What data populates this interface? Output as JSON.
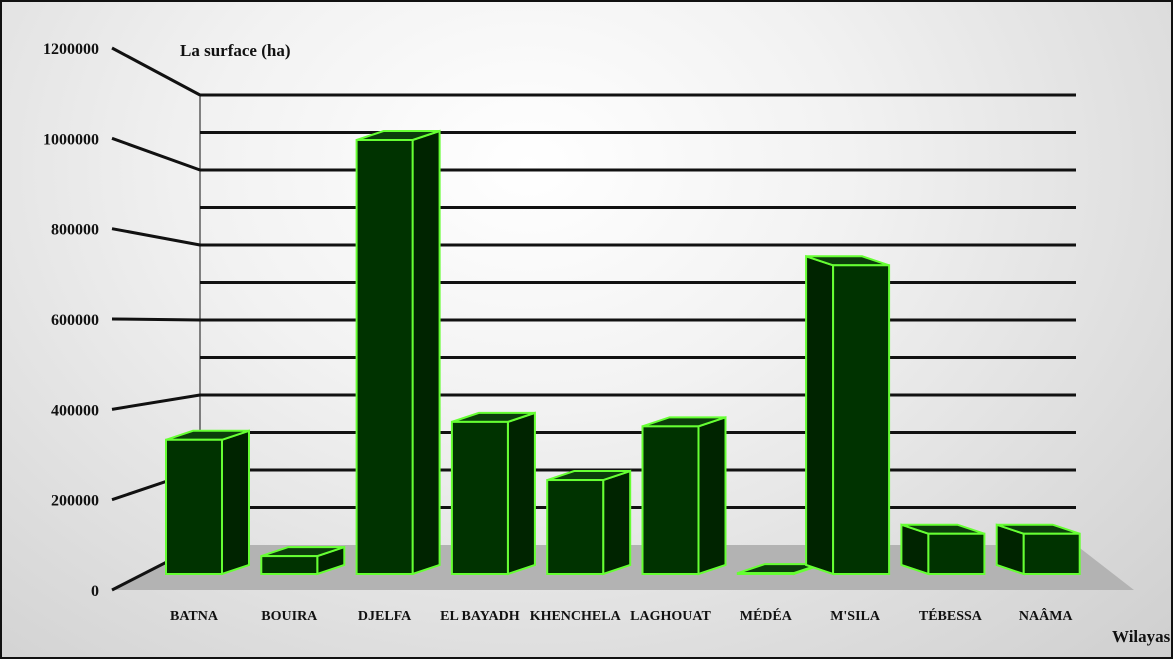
{
  "chart_data": {
    "type": "bar",
    "ylabel": "La surface (ha)",
    "xlabel": "Wilayas",
    "categories": [
      "BATNA",
      "BOUIRA",
      "DJELFA",
      "EL BAYADH",
      "KHENCHELA",
      "LAGHOUAT",
      "MÉDÉA",
      "M'SILA",
      "TÉBESSA",
      "NAÂMA"
    ],
    "values": [
      300000,
      40000,
      970000,
      340000,
      210000,
      330000,
      2000,
      690000,
      90000,
      90000
    ],
    "yticks": [
      0,
      200000,
      400000,
      600000,
      800000,
      1000000,
      1200000
    ],
    "ytick_labels": [
      "0",
      "200000",
      "400000",
      "600000",
      "800000",
      "1000000",
      "1200000"
    ],
    "ylim": [
      0,
      1200000
    ],
    "grid": true,
    "colors": {
      "bar_front": "#003300",
      "bar_side": "#002400",
      "bar_top": "#0b3d0b",
      "bar_outline": "#66ff33",
      "floor": "#b3b3b3",
      "grid": "#111111"
    }
  }
}
